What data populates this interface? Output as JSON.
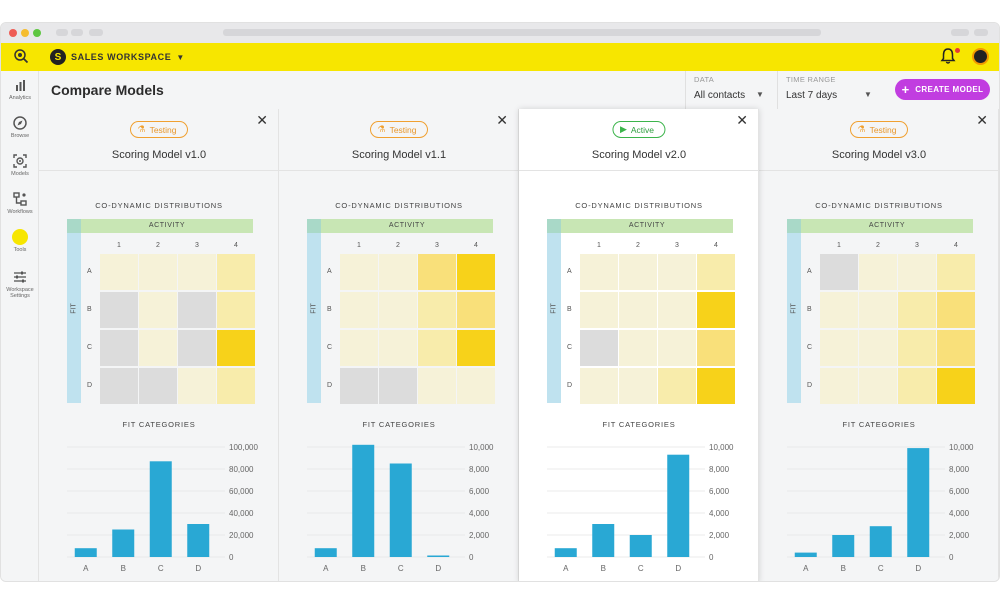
{
  "workspace": {
    "label": "SALES WORKSPACE"
  },
  "sidebar": {
    "items": [
      {
        "label": "Analytics",
        "icon": "bar-chart-icon"
      },
      {
        "label": "Browse",
        "icon": "compass-icon"
      },
      {
        "label": "Models",
        "icon": "target-icon"
      },
      {
        "label": "Workflows",
        "icon": "workflow-icon"
      },
      {
        "label": "Tools",
        "icon": "toolbox-icon"
      },
      {
        "label": "Workspace Settings",
        "icon": "sliders-icon"
      }
    ]
  },
  "header": {
    "title": "Compare Models",
    "data_filter": {
      "label": "DATA",
      "value": "All contacts"
    },
    "time_filter": {
      "label": "TIME RANGE",
      "value": "Last 7 days"
    },
    "create_label": "CREATE MODEL"
  },
  "colors": {
    "accent": "#f7e600",
    "create": "#c13de0",
    "bar": "#29a8d4",
    "testing": "#e8962a",
    "active": "#2e9e3e"
  },
  "panels": [
    {
      "status": "Testing",
      "status_icon": "flask-icon",
      "name": "Scoring Model v1.0",
      "active": false,
      "matrix_title": "CO-DYNAMIC DISTRIBUTIONS",
      "activity_label": "ACTIVITY",
      "fit_label": "FIT",
      "columns": [
        "1",
        "2",
        "3",
        "4"
      ],
      "rows": [
        "A",
        "B",
        "C",
        "D"
      ],
      "matrix": [
        [
          0,
          0,
          0,
          2
        ],
        [
          1,
          0,
          1,
          2
        ],
        [
          1,
          0,
          1,
          4
        ],
        [
          1,
          1,
          0,
          2
        ]
      ],
      "chart_title": "FIT CATEGORIES",
      "chart": {
        "categories": [
          "A",
          "B",
          "C",
          "D"
        ],
        "values": [
          8000,
          25000,
          87000,
          30000
        ],
        "ticks": [
          "100,000",
          "80,000",
          "60,000",
          "40,000",
          "20,000",
          "0"
        ],
        "ymax": 100000
      }
    },
    {
      "status": "Testing",
      "status_icon": "flask-icon",
      "name": "Scoring Model v1.1",
      "active": false,
      "matrix_title": "CO-DYNAMIC DISTRIBUTIONS",
      "activity_label": "ACTIVITY",
      "fit_label": "FIT",
      "columns": [
        "1",
        "2",
        "3",
        "4"
      ],
      "rows": [
        "A",
        "B",
        "C",
        "D"
      ],
      "matrix": [
        [
          0,
          0,
          3,
          4
        ],
        [
          0,
          0,
          2,
          3
        ],
        [
          0,
          0,
          2,
          4
        ],
        [
          1,
          1,
          0,
          0
        ]
      ],
      "chart_title": "FIT CATEGORIES",
      "chart": {
        "categories": [
          "A",
          "B",
          "C",
          "D"
        ],
        "values": [
          800,
          10200,
          8500,
          100
        ],
        "ticks": [
          "10,000",
          "8,000",
          "6,000",
          "4,000",
          "2,000",
          "0"
        ],
        "ymax": 10000
      }
    },
    {
      "status": "Active",
      "status_icon": "play-icon",
      "name": "Scoring Model v2.0",
      "active": true,
      "matrix_title": "CO-DYNAMIC DISTRIBUTIONS",
      "activity_label": "ACTIVITY",
      "fit_label": "FIT",
      "columns": [
        "1",
        "2",
        "3",
        "4"
      ],
      "rows": [
        "A",
        "B",
        "C",
        "D"
      ],
      "matrix": [
        [
          0,
          0,
          0,
          2
        ],
        [
          0,
          0,
          0,
          4
        ],
        [
          1,
          0,
          0,
          3
        ],
        [
          0,
          0,
          2,
          4
        ]
      ],
      "chart_title": "FIT CATEGORIES",
      "chart": {
        "categories": [
          "A",
          "B",
          "C",
          "D"
        ],
        "values": [
          800,
          3000,
          2000,
          9300
        ],
        "ticks": [
          "10,000",
          "8,000",
          "6,000",
          "4,000",
          "2,000",
          "0"
        ],
        "ymax": 10000
      }
    },
    {
      "status": "Testing",
      "status_icon": "flask-icon",
      "name": "Scoring Model v3.0",
      "active": false,
      "matrix_title": "CO-DYNAMIC DISTRIBUTIONS",
      "activity_label": "ACTIVITY",
      "fit_label": "FIT",
      "columns": [
        "1",
        "2",
        "3",
        "4"
      ],
      "rows": [
        "A",
        "B",
        "C",
        "D"
      ],
      "matrix": [
        [
          1,
          0,
          0,
          2
        ],
        [
          0,
          0,
          2,
          3
        ],
        [
          0,
          0,
          2,
          3
        ],
        [
          0,
          0,
          2,
          4
        ]
      ],
      "chart_title": "FIT CATEGORIES",
      "chart": {
        "categories": [
          "A",
          "B",
          "C",
          "D"
        ],
        "values": [
          400,
          2000,
          2800,
          9900
        ],
        "ticks": [
          "10,000",
          "8,000",
          "6,000",
          "4,000",
          "2,000",
          "0"
        ],
        "ymax": 10000
      }
    }
  ]
}
